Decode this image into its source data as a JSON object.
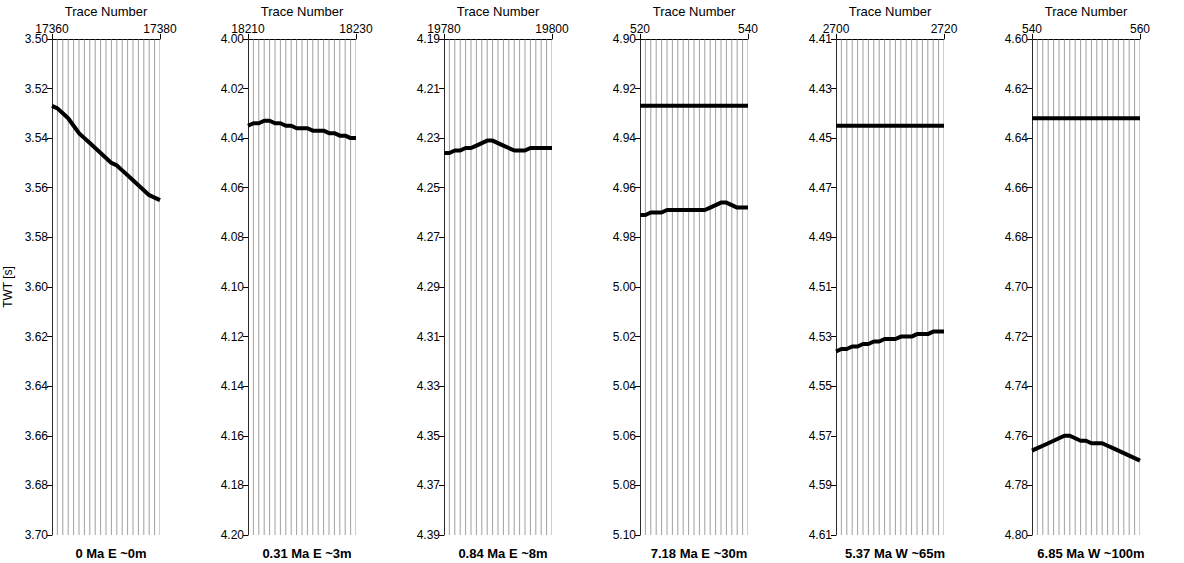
{
  "chart_data": [
    {
      "type": "line",
      "title": "0 Ma E ~0m",
      "x_label": "Trace Number",
      "y_label": "TWT [s]",
      "grid": false,
      "x": [
        17360,
        17361,
        17362,
        17363,
        17364,
        17365,
        17366,
        17367,
        17368,
        17369,
        17370,
        17371,
        17372,
        17373,
        17374,
        17375,
        17376,
        17377,
        17378,
        17379,
        17380
      ],
      "xlim": [
        17360,
        17380
      ],
      "xticks": [
        17360,
        17380
      ],
      "ylim": [
        3.5,
        3.7
      ],
      "yticks": [
        {
          "value": 3.5,
          "label": "3.50"
        },
        3.52,
        3.54,
        3.56,
        3.58,
        {
          "value": 3.6,
          "label": "3.60"
        },
        3.62,
        3.64,
        3.66,
        3.68,
        {
          "value": 3.7,
          "label": "3.70"
        }
      ],
      "series": [
        {
          "color": "#000000",
          "values": [
            3.527,
            3.528,
            3.53,
            3.532,
            3.535,
            3.538,
            3.54,
            3.542,
            3.544,
            3.546,
            3.548,
            3.55,
            3.551,
            3.553,
            3.555,
            3.557,
            3.559,
            3.561,
            3.563,
            3.564,
            3.565
          ]
        }
      ]
    },
    {
      "type": "line",
      "title": "0.31 Ma E ~3m",
      "x_label": "Trace Number",
      "grid": false,
      "x": [
        18210,
        18211,
        18212,
        18213,
        18214,
        18215,
        18216,
        18217,
        18218,
        18219,
        18220,
        18221,
        18222,
        18223,
        18224,
        18225,
        18226,
        18227,
        18228,
        18229,
        18230
      ],
      "xlim": [
        18210,
        18230
      ],
      "xticks": [
        18210,
        18230
      ],
      "ylim": [
        4.0,
        4.2
      ],
      "yticks": [
        {
          "value": 4.0,
          "label": "4.00"
        },
        4.02,
        4.04,
        4.06,
        4.08,
        {
          "value": 4.1,
          "label": "4.10"
        },
        4.12,
        4.14,
        4.16,
        4.18,
        {
          "value": 4.2,
          "label": "4.20"
        }
      ],
      "series": [
        {
          "color": "#000000",
          "values": [
            4.035,
            4.034,
            4.034,
            4.033,
            4.033,
            4.034,
            4.034,
            4.035,
            4.035,
            4.036,
            4.036,
            4.036,
            4.037,
            4.037,
            4.037,
            4.038,
            4.038,
            4.039,
            4.039,
            4.04,
            4.04
          ]
        }
      ]
    },
    {
      "type": "line",
      "title": "0.84 Ma E ~8m",
      "x_label": "Trace Number",
      "grid": false,
      "x": [
        19780,
        19781,
        19782,
        19783,
        19784,
        19785,
        19786,
        19787,
        19788,
        19789,
        19790,
        19791,
        19792,
        19793,
        19794,
        19795,
        19796,
        19797,
        19798,
        19799,
        19800
      ],
      "xlim": [
        19780,
        19800
      ],
      "xticks": [
        19780,
        19800
      ],
      "ylim": [
        4.19,
        4.39
      ],
      "yticks": [
        4.19,
        4.21,
        4.23,
        4.25,
        4.27,
        4.29,
        4.31,
        4.33,
        4.35,
        4.37,
        4.39
      ],
      "series": [
        {
          "color": "#000000",
          "values": [
            4.236,
            4.236,
            4.235,
            4.235,
            4.234,
            4.234,
            4.233,
            4.232,
            4.231,
            4.231,
            4.232,
            4.233,
            4.234,
            4.235,
            4.235,
            4.235,
            4.234,
            4.234,
            4.234,
            4.234,
            4.234
          ]
        }
      ]
    },
    {
      "type": "line",
      "title": "7.18 Ma E ~30m",
      "x_label": "Trace Number",
      "grid": false,
      "x": [
        520,
        521,
        522,
        523,
        524,
        525,
        526,
        527,
        528,
        529,
        530,
        531,
        532,
        533,
        534,
        535,
        536,
        537,
        538,
        539,
        540
      ],
      "xlim": [
        520,
        540
      ],
      "xticks": [
        520,
        540
      ],
      "ylim": [
        4.9,
        5.1
      ],
      "yticks": [
        {
          "value": 4.9,
          "label": "4.90"
        },
        4.92,
        4.94,
        4.96,
        4.98,
        {
          "value": 5.0,
          "label": "5.00"
        },
        5.02,
        5.04,
        5.06,
        5.08,
        {
          "value": 5.1,
          "label": "5.10"
        }
      ],
      "series": [
        {
          "color": "#000000",
          "values": [
            4.927,
            4.927,
            4.927,
            4.927,
            4.927,
            4.927,
            4.927,
            4.927,
            4.927,
            4.927,
            4.927,
            4.927,
            4.927,
            4.927,
            4.927,
            4.927,
            4.927,
            4.927,
            4.927,
            4.927,
            4.927
          ]
        },
        {
          "color": "#000000",
          "values": [
            4.971,
            4.971,
            4.97,
            4.97,
            4.97,
            4.969,
            4.969,
            4.969,
            4.969,
            4.969,
            4.969,
            4.969,
            4.969,
            4.968,
            4.967,
            4.966,
            4.966,
            4.967,
            4.968,
            4.968,
            4.968
          ]
        }
      ]
    },
    {
      "type": "line",
      "title": "5.37 Ma W ~65m",
      "x_label": "Trace Number",
      "grid": false,
      "x": [
        2700,
        2701,
        2702,
        2703,
        2704,
        2705,
        2706,
        2707,
        2708,
        2709,
        2710,
        2711,
        2712,
        2713,
        2714,
        2715,
        2716,
        2717,
        2718,
        2719,
        2720
      ],
      "xlim": [
        2700,
        2720
      ],
      "xticks": [
        2700,
        2720
      ],
      "ylim": [
        4.41,
        4.61
      ],
      "yticks": [
        4.41,
        4.43,
        4.45,
        4.47,
        4.49,
        4.51,
        4.53,
        4.55,
        4.57,
        4.59,
        4.61
      ],
      "series": [
        {
          "color": "#000000",
          "values": [
            4.445,
            4.445,
            4.445,
            4.445,
            4.445,
            4.445,
            4.445,
            4.445,
            4.445,
            4.445,
            4.445,
            4.445,
            4.445,
            4.445,
            4.445,
            4.445,
            4.445,
            4.445,
            4.445,
            4.445,
            4.445
          ]
        },
        {
          "color": "#000000",
          "values": [
            4.536,
            4.535,
            4.535,
            4.534,
            4.534,
            4.533,
            4.533,
            4.532,
            4.532,
            4.531,
            4.531,
            4.531,
            4.53,
            4.53,
            4.53,
            4.529,
            4.529,
            4.529,
            4.528,
            4.528,
            4.528
          ]
        }
      ]
    },
    {
      "type": "line",
      "title": "6.85 Ma W ~100m",
      "x_label": "Trace Number",
      "grid": false,
      "x": [
        540,
        541,
        542,
        543,
        544,
        545,
        546,
        547,
        548,
        549,
        550,
        551,
        552,
        553,
        554,
        555,
        556,
        557,
        558,
        559,
        560
      ],
      "xlim": [
        540,
        560
      ],
      "xticks": [
        540,
        560
      ],
      "ylim": [
        4.6,
        4.8
      ],
      "yticks": [
        {
          "value": 4.6,
          "label": "4.60"
        },
        4.62,
        4.64,
        4.66,
        4.68,
        {
          "value": 4.7,
          "label": "4.70"
        },
        4.72,
        4.74,
        4.76,
        4.78,
        {
          "value": 4.8,
          "label": "4.80"
        }
      ],
      "series": [
        {
          "color": "#000000",
          "values": [
            4.632,
            4.632,
            4.632,
            4.632,
            4.632,
            4.632,
            4.632,
            4.632,
            4.632,
            4.632,
            4.632,
            4.632,
            4.632,
            4.632,
            4.632,
            4.632,
            4.632,
            4.632,
            4.632,
            4.632,
            4.632
          ]
        },
        {
          "color": "#000000",
          "values": [
            4.766,
            4.765,
            4.764,
            4.763,
            4.762,
            4.761,
            4.76,
            4.76,
            4.761,
            4.762,
            4.762,
            4.763,
            4.763,
            4.763,
            4.764,
            4.765,
            4.766,
            4.767,
            4.768,
            4.769,
            4.77
          ]
        }
      ]
    }
  ]
}
